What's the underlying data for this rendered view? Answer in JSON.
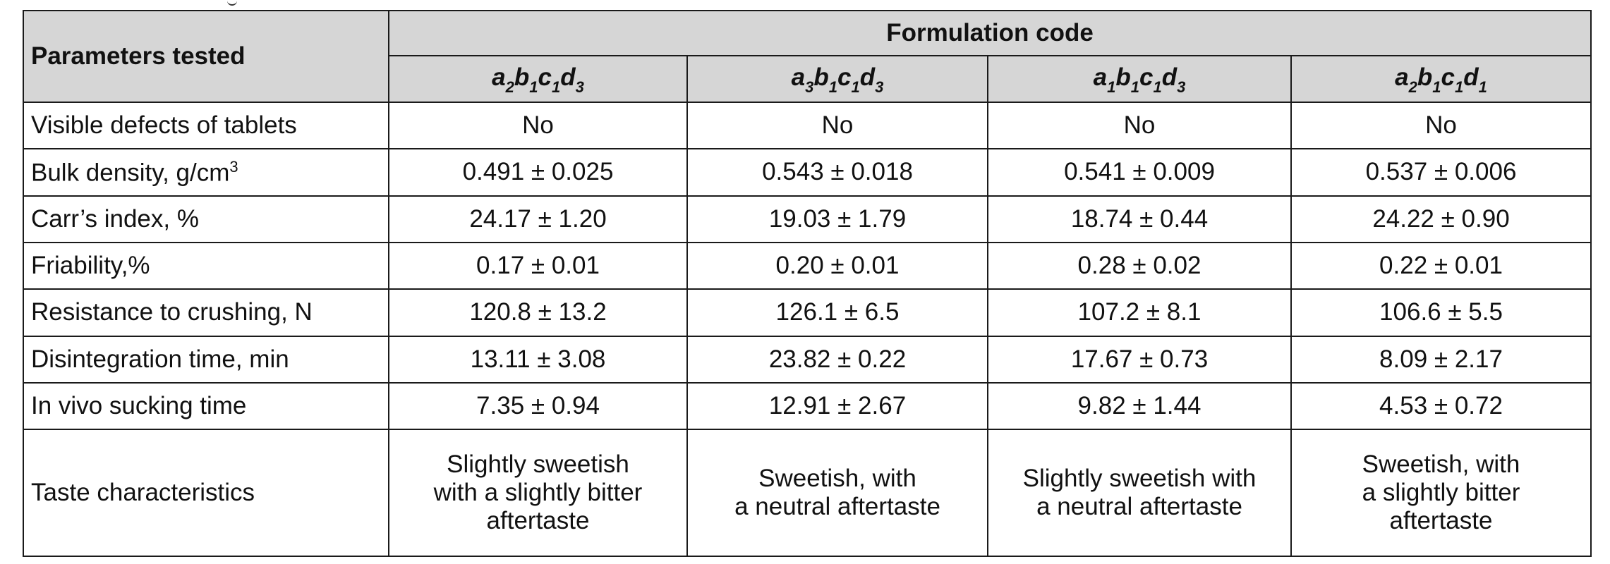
{
  "table": {
    "header": {
      "parameters": "Parameters tested",
      "group": "Formulation code",
      "codes": [
        {
          "parts": [
            {
              "t": "a",
              "s": "2"
            },
            {
              "t": "b",
              "s": "1"
            },
            {
              "t": "c",
              "s": "1"
            },
            {
              "t": "d",
              "s": "3"
            }
          ]
        },
        {
          "parts": [
            {
              "t": "a",
              "s": "3"
            },
            {
              "t": "b",
              "s": "1"
            },
            {
              "t": "c",
              "s": "1"
            },
            {
              "t": "d",
              "s": "3"
            }
          ]
        },
        {
          "parts": [
            {
              "t": "a",
              "s": "1"
            },
            {
              "t": "b",
              "s": "1"
            },
            {
              "t": "c",
              "s": "1"
            },
            {
              "t": "d",
              "s": "3"
            }
          ]
        },
        {
          "parts": [
            {
              "t": "a",
              "s": "2"
            },
            {
              "t": "b",
              "s": "1"
            },
            {
              "t": "c",
              "s": "1"
            },
            {
              "t": "d",
              "s": "1"
            }
          ]
        }
      ]
    },
    "rows": [
      {
        "label": "Visible defects of tablets",
        "values": [
          "No",
          "No",
          "No",
          "No"
        ]
      },
      {
        "label": "Bulk density, g/cm",
        "label_sup": "3",
        "values": [
          "0.491 ± 0.025",
          "0.543 ± 0.018",
          "0.541 ± 0.009",
          "0.537 ± 0.006"
        ]
      },
      {
        "label": "Carr’s index, %",
        "values": [
          "24.17 ± 1.20",
          "19.03 ± 1.79",
          "18.74 ± 0.44",
          "24.22 ± 0.90"
        ]
      },
      {
        "label": "Friability,%",
        "values": [
          "0.17 ± 0.01",
          "0.20 ± 0.01",
          "0.28 ± 0.02",
          "0.22 ± 0.01"
        ]
      },
      {
        "label": "Resistance to crushing, N",
        "values": [
          "120.8 ± 13.2",
          "126.1 ± 6.5",
          "107.2 ± 8.1",
          "106.6 ± 5.5"
        ]
      },
      {
        "label": "Disintegration time, min",
        "values": [
          "13.11 ± 3.08",
          "23.82 ± 0.22",
          "17.67 ± 0.73",
          "8.09 ± 2.17"
        ]
      },
      {
        "label": "In vivo sucking time",
        "values": [
          "7.35 ± 0.94",
          "12.91 ± 2.67",
          "9.82 ± 1.44",
          "4.53 ± 0.72"
        ]
      }
    ],
    "taste": {
      "label": "Taste characteristics",
      "values": [
        "Slightly sweetish\nwith a slightly bitter\naftertaste",
        "Sweetish, with\na neutral aftertaste",
        "Slightly sweetish with\na neutral aftertaste",
        "Sweetish, with\na slightly bitter\naftertaste"
      ]
    }
  }
}
